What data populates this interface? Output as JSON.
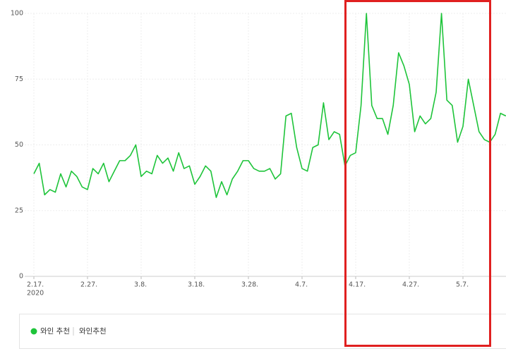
{
  "chart_data": {
    "type": "line",
    "categories": [
      "2.17.",
      null,
      null,
      null,
      null,
      null,
      null,
      null,
      null,
      null,
      "2.27.",
      null,
      null,
      null,
      null,
      null,
      null,
      null,
      null,
      null,
      "3.8.",
      null,
      null,
      null,
      null,
      null,
      null,
      null,
      null,
      null,
      "3.18.",
      null,
      null,
      null,
      null,
      null,
      null,
      null,
      null,
      null,
      "3.28.",
      null,
      null,
      null,
      null,
      null,
      null,
      null,
      null,
      null,
      "4.7.",
      null,
      null,
      null,
      null,
      null,
      null,
      null,
      null,
      null,
      "4.17.",
      null,
      null,
      null,
      null,
      null,
      null,
      null,
      null,
      null,
      "4.27.",
      null,
      null,
      null,
      null,
      null,
      null,
      null,
      null,
      null,
      "5.7.",
      null,
      null,
      null,
      null,
      null,
      null,
      null,
      null
    ],
    "x_year": "2020",
    "series": [
      {
        "name": "와인 추천",
        "color": "#1ec43a",
        "values": [
          39,
          43,
          31,
          33,
          32,
          39,
          34,
          40,
          38,
          34,
          33,
          41,
          39,
          43,
          36,
          40,
          44,
          44,
          46,
          50,
          38,
          40,
          39,
          46,
          43,
          45,
          40,
          47,
          41,
          42,
          35,
          38,
          42,
          40,
          30,
          36,
          31,
          37,
          40,
          44,
          44,
          41,
          40,
          40,
          41,
          37,
          39,
          61,
          62,
          49,
          41,
          40,
          49,
          50,
          66,
          52,
          55,
          54,
          42,
          46,
          47,
          65,
          100,
          65,
          60,
          60,
          54,
          65,
          85,
          80,
          73,
          55,
          61,
          58,
          60,
          70,
          100,
          67,
          65,
          51,
          57,
          75,
          65,
          55,
          52,
          51,
          54,
          62,
          61
        ]
      }
    ],
    "legend_detail": "와인추천",
    "ylim": [
      0,
      100
    ],
    "yticks": [
      0,
      25,
      50,
      75,
      100
    ],
    "grid": true
  }
}
